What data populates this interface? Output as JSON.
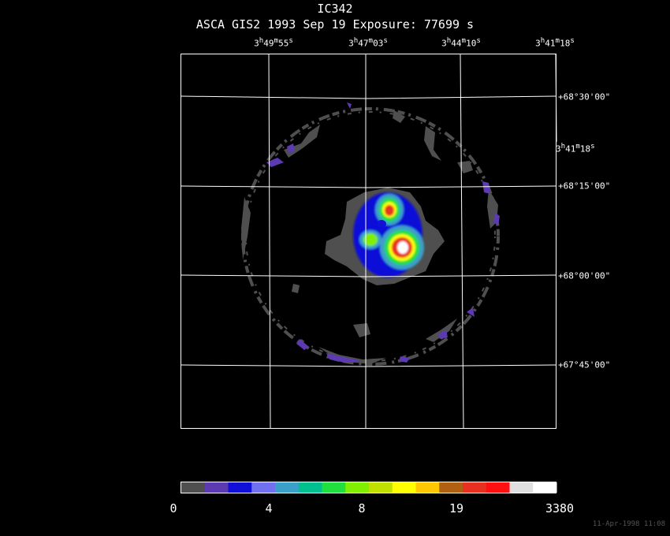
{
  "header": {
    "title": "IC342",
    "subtitle": "ASCA GIS2   1993 Sep 19    Exposure: 77699 s"
  },
  "axes": {
    "ra_top": [
      {
        "h": "3",
        "m": "49",
        "s": "55"
      },
      {
        "h": "3",
        "m": "47",
        "s": "03"
      },
      {
        "h": "3",
        "m": "44",
        "s": "10"
      },
      {
        "h": "3",
        "m": "41",
        "s": "18"
      }
    ],
    "ra_side": {
      "h": "3",
      "m": "41",
      "s": "18"
    },
    "dec_right": [
      "+68°30'00\"",
      "+68°15'00\"",
      "+68°00'00\"",
      "+67°45'00\""
    ]
  },
  "colorbar": {
    "colors": [
      "#4f4f4f",
      "#5b3ab2",
      "#1010d8",
      "#7070f0",
      "#3aa0c8",
      "#00c090",
      "#20e040",
      "#80f000",
      "#c0e000",
      "#ffff00",
      "#ffc800",
      "#b06010",
      "#e83020",
      "#ff1010",
      "#e0e0e0",
      "#ffffff"
    ],
    "labels": [
      "0",
      "4",
      "8",
      "19",
      "3380"
    ]
  },
  "datestamp": "11-Apr-1998 11:08"
}
